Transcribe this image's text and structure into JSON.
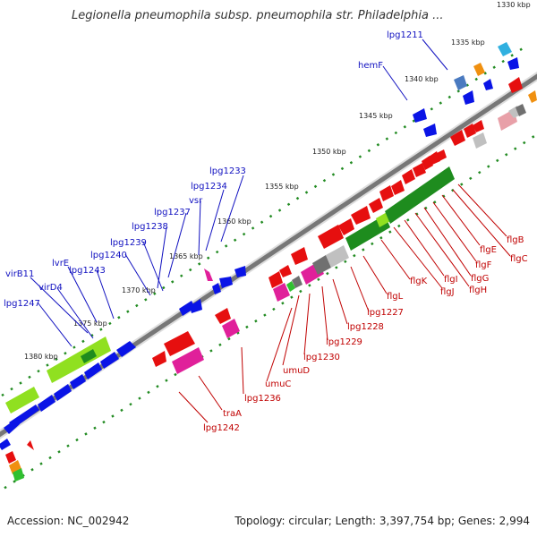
{
  "title": "Legionella pneumophila subsp. pneumophila str. Philadelphia ...",
  "footer": {
    "accession": "Accession: NC_002942",
    "summary": "Topology: circular; Length: 3,397,754 bp; Genes: 2,994"
  },
  "kbp_ticks": [
    "1330 kbp",
    "1335 kbp",
    "1340 kbp",
    "1345 kbp",
    "1350 kbp",
    "1355 kbp",
    "1360 kbp",
    "1365 kbp",
    "1370 kbp",
    "1375 kbp",
    "1380 kbp"
  ],
  "blue_labels": [
    "lpg1211",
    "hemF",
    "lpg1233",
    "lpg1234",
    "vsr",
    "lpg1237",
    "lpg1238",
    "lpg1239",
    "lpg1240",
    "lvrE",
    "lpg1243",
    "virB11",
    "virD4",
    "lpg1247"
  ],
  "red_labels": [
    "flgB",
    "flgC",
    "flgE",
    "flgF",
    "flgG",
    "flgH",
    "flgI",
    "flgJ",
    "flgK",
    "flgL",
    "lpg1227",
    "lpg1228",
    "lpg1229",
    "lpg1230",
    "umuD",
    "umuC",
    "lpg1236",
    "traA",
    "lpg1242"
  ],
  "colors": {
    "forward_gene": "#0a14e6",
    "reverse_gene": "#e60f0f",
    "pseudo_gene": "#1e8c1e",
    "light_gene": "#90e020",
    "pink_gene": "#e0209a",
    "grey_gene": "#707070",
    "backbone": "#777777",
    "tick_dots": "#228b22"
  }
}
